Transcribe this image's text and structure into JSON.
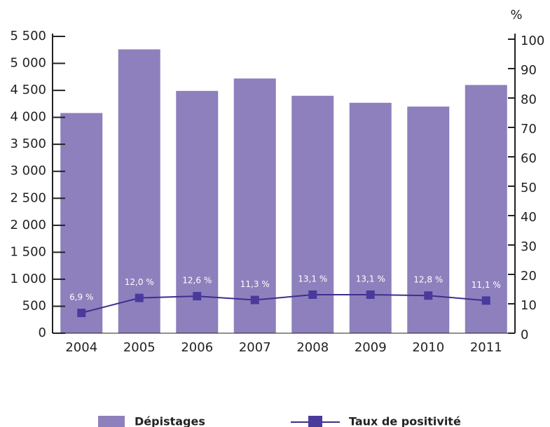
{
  "chart_data": {
    "type": "bar",
    "y2_title": "%",
    "categories": [
      "2004",
      "2005",
      "2006",
      "2007",
      "2008",
      "2009",
      "2010",
      "2011"
    ],
    "series": [
      {
        "name": "Dépistages",
        "type": "bar",
        "color": "#8e80bc",
        "values": [
          4080,
          5260,
          4490,
          4720,
          4400,
          4270,
          4200,
          4600
        ]
      },
      {
        "name": "Taux de positivité",
        "type": "line",
        "axis": "y2",
        "color": "#3f2e8e",
        "values": [
          6.9,
          12.0,
          12.6,
          11.3,
          13.1,
          13.1,
          12.8,
          11.1
        ],
        "value_labels": [
          "6,9 %",
          "12,0 %",
          "12,6 %",
          "11,3 %",
          "13,1 %",
          "13,1 %",
          "12,8 %",
          "11,1 %"
        ]
      }
    ],
    "ylim": [
      0,
      5500
    ],
    "yticks": [
      0,
      500,
      {
        "value": 1000,
        "label": "1 000"
      },
      {
        "value": 1500,
        "label": "1 500"
      },
      {
        "value": 2000,
        "label": "2 000"
      },
      {
        "value": 2500,
        "label": "2 500"
      },
      {
        "value": 3000,
        "label": "3 000"
      },
      {
        "value": 3500,
        "label": "3 500"
      },
      {
        "value": 4000,
        "label": "4 000"
      },
      {
        "value": 4500,
        "label": "4 500"
      },
      {
        "value": 5000,
        "label": "5 000"
      },
      {
        "value": 5500,
        "label": "5 500"
      }
    ],
    "y2lim": [
      0,
      100
    ],
    "y2ticks": [
      0,
      10,
      20,
      30,
      40,
      50,
      60,
      70,
      80,
      90,
      100
    ],
    "legend": "bottom"
  }
}
